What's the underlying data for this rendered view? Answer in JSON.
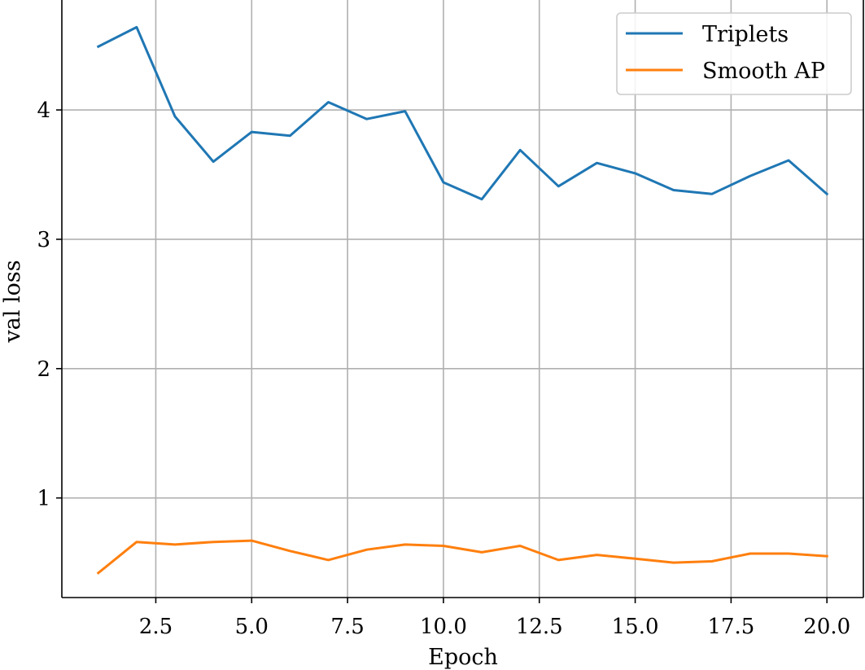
{
  "chart_data": {
    "type": "line",
    "title": "",
    "xlabel": "Epoch",
    "ylabel": "val loss",
    "xlim": [
      0.05,
      20.95
    ],
    "ylim": [
      0.23,
      4.85
    ],
    "xticks": [
      2.5,
      5.0,
      7.5,
      10.0,
      12.5,
      15.0,
      17.5,
      20.0
    ],
    "xtick_labels": [
      "2.5",
      "5.0",
      "7.5",
      "10.0",
      "12.5",
      "15.0",
      "17.5",
      "20.0"
    ],
    "yticks": [
      1,
      2,
      3,
      4
    ],
    "ytick_labels": [
      "1",
      "2",
      "3",
      "4"
    ],
    "grid": true,
    "legend_position": "top-right",
    "x": [
      1,
      2,
      3,
      4,
      5,
      6,
      7,
      8,
      9,
      10,
      11,
      12,
      13,
      14,
      15,
      16,
      17,
      18,
      19,
      20
    ],
    "series": [
      {
        "name": "Triplets",
        "color": "#1f77b4",
        "values": [
          4.49,
          4.64,
          3.95,
          3.6,
          3.83,
          3.8,
          4.06,
          3.93,
          3.99,
          3.44,
          3.31,
          3.69,
          3.41,
          3.59,
          3.51,
          3.38,
          3.35,
          3.49,
          3.61,
          3.35
        ]
      },
      {
        "name": "Smooth AP",
        "color": "#ff7f0e",
        "values": [
          0.42,
          0.66,
          0.64,
          0.66,
          0.67,
          0.59,
          0.52,
          0.6,
          0.64,
          0.63,
          0.58,
          0.63,
          0.52,
          0.56,
          0.53,
          0.5,
          0.51,
          0.57,
          0.57,
          0.55
        ]
      }
    ]
  }
}
